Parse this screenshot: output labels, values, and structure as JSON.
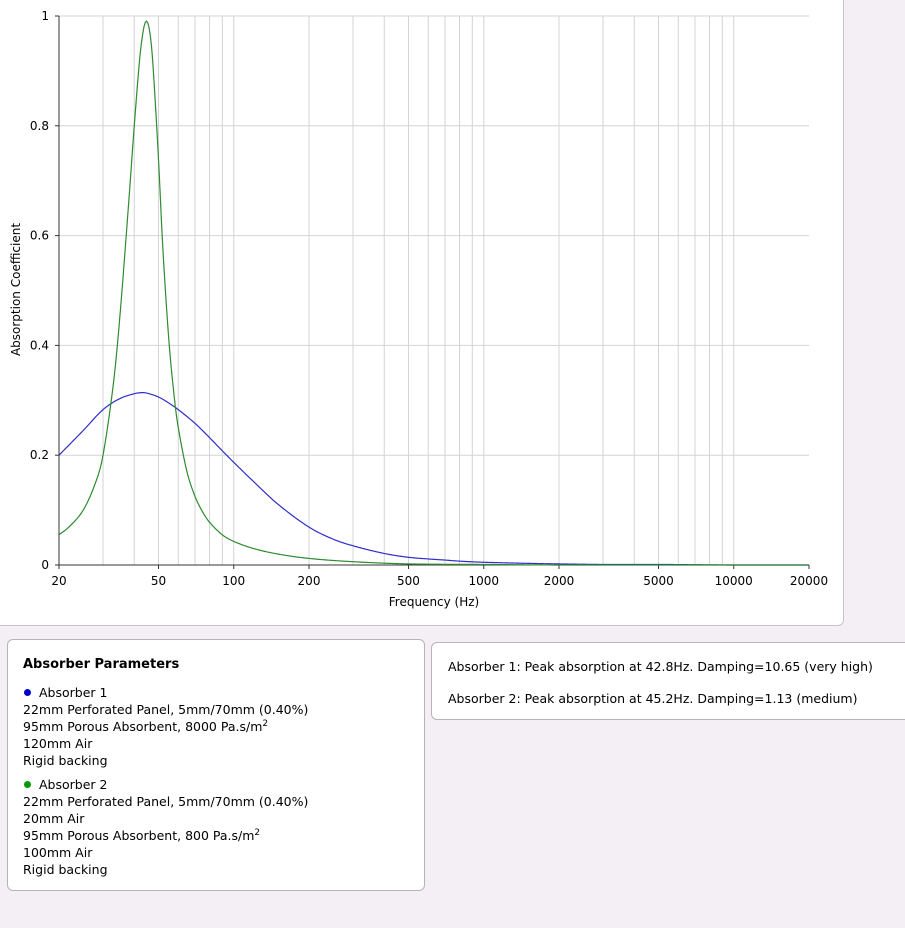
{
  "chart_data": {
    "type": "line",
    "xlabel": "Frequency (Hz)",
    "ylabel": "Absorption Coefficient",
    "x_scale": "log",
    "xlim": [
      20,
      20000
    ],
    "ylim": [
      0,
      1
    ],
    "grid": true,
    "x_ticks": [
      20,
      50,
      100,
      200,
      500,
      1000,
      2000,
      5000,
      10000,
      20000
    ],
    "x_tick_labels": [
      "20",
      "50",
      "100",
      "200",
      "500",
      "1000",
      "2000",
      "5000",
      "10000",
      "20000"
    ],
    "y_ticks": [
      0,
      0.2,
      0.4,
      0.6,
      0.8,
      1
    ],
    "y_tick_labels": [
      "0",
      "0.2",
      "0.4",
      "0.6",
      "0.8",
      "1"
    ],
    "series": [
      {
        "color": "#2e2ecc",
        "x": [
          20,
          25,
          30,
          35,
          40,
          43,
          45,
          50,
          55,
          60,
          70,
          80,
          90,
          100,
          120,
          150,
          200,
          250,
          300,
          400,
          500,
          600,
          700,
          800,
          1000,
          1500,
          2000,
          3000,
          5000,
          10000,
          20000
        ],
        "y": [
          0.2,
          0.245,
          0.283,
          0.303,
          0.312,
          0.314,
          0.313,
          0.306,
          0.295,
          0.283,
          0.258,
          0.232,
          0.208,
          0.187,
          0.152,
          0.111,
          0.069,
          0.047,
          0.035,
          0.021,
          0.014,
          0.011,
          0.009,
          0.007,
          0.005,
          0.003,
          0.002,
          0.001,
          0.001,
          0.0,
          0.0
        ]
      },
      {
        "color": "#2e8b2e",
        "x": [
          20,
          22,
          25,
          28,
          30,
          33,
          35,
          38,
          40,
          42,
          43,
          44,
          45,
          46,
          47,
          48,
          50,
          52,
          55,
          58,
          60,
          65,
          70,
          75,
          80,
          90,
          100,
          120,
          150,
          200,
          300,
          500,
          1000,
          2000,
          5000,
          20000
        ],
        "y": [
          0.055,
          0.07,
          0.1,
          0.15,
          0.2,
          0.33,
          0.45,
          0.66,
          0.8,
          0.92,
          0.96,
          0.985,
          0.99,
          0.975,
          0.94,
          0.88,
          0.74,
          0.58,
          0.41,
          0.3,
          0.25,
          0.17,
          0.125,
          0.097,
          0.078,
          0.055,
          0.043,
          0.03,
          0.02,
          0.012,
          0.006,
          0.002,
          0.001,
          0.0,
          0.0,
          0.0
        ]
      }
    ]
  },
  "params": {
    "title": "Absorber Parameters",
    "absorbers": [
      {
        "name": "Absorber 1",
        "color": "#0000cc",
        "layers": [
          {
            "text": "22mm Perforated Panel, 5mm/70mm (0.40%)",
            "sup": ""
          },
          {
            "text": "95mm Porous Absorbent, 8000 Pa.s/m",
            "sup": "2"
          },
          {
            "text": "120mm Air",
            "sup": ""
          },
          {
            "text": "Rigid backing",
            "sup": ""
          }
        ]
      },
      {
        "name": "Absorber 2",
        "color": "#009900",
        "layers": [
          {
            "text": "22mm Perforated Panel, 5mm/70mm (0.40%)",
            "sup": ""
          },
          {
            "text": "20mm Air",
            "sup": ""
          },
          {
            "text": "95mm Porous Absorbent, 800 Pa.s/m",
            "sup": "2"
          },
          {
            "text": "100mm Air",
            "sup": ""
          },
          {
            "text": "Rigid backing",
            "sup": ""
          }
        ]
      }
    ]
  },
  "results": {
    "line1": "Absorber 1: Peak absorption at 42.8Hz. Damping=10.65 (very high)",
    "line2": "Absorber 2: Peak absorption at 45.2Hz. Damping=1.13 (medium)"
  }
}
